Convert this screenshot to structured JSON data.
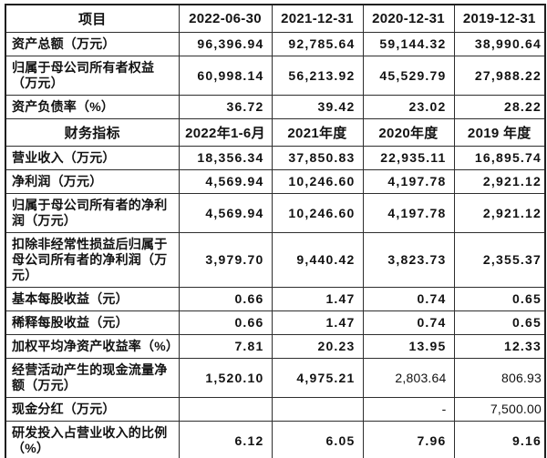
{
  "colors": {
    "background": "#ffffff",
    "text": "#121212",
    "border": "#2e2e2e",
    "outer_border": "#1e1e1e"
  },
  "table": {
    "sections": [
      {
        "header": [
          "项目",
          "2022-06-30",
          "2021-12-31",
          "2020-12-31",
          "2019-12-31"
        ],
        "rows": [
          {
            "label": "资产总额（万元）",
            "values": [
              "96,396.94",
              "92,785.64",
              "59,144.32",
              "38,990.64"
            ],
            "normal": []
          },
          {
            "label": "归属于母公司所有者权益（万元）",
            "values": [
              "60,998.14",
              "56,213.92",
              "45,529.79",
              "27,988.22"
            ],
            "normal": []
          },
          {
            "label": "资产负债率（%）",
            "values": [
              "36.72",
              "39.42",
              "23.02",
              "28.22"
            ],
            "normal": []
          }
        ]
      },
      {
        "header": [
          "财务指标",
          "2022年1-6月",
          "2021年度",
          "2020年度",
          "2019 年度"
        ],
        "rows": [
          {
            "label": "营业收入（万元）",
            "values": [
              "18,356.34",
              "37,850.83",
              "22,935.11",
              "16,895.74"
            ],
            "normal": []
          },
          {
            "label": "净利润（万元）",
            "values": [
              "4,569.94",
              "10,246.60",
              "4,197.78",
              "2,921.12"
            ],
            "normal": []
          },
          {
            "label": "归属于母公司所有者的净利润（万元）",
            "values": [
              "4,569.94",
              "10,246.60",
              "4,197.78",
              "2,921.12"
            ],
            "normal": []
          },
          {
            "label": "扣除非经常性损益后归属于母公司所有者的净利润（万元）",
            "values": [
              "3,979.70",
              "9,440.42",
              "3,823.73",
              "2,355.37"
            ],
            "normal": []
          },
          {
            "label": "基本每股收益（元）",
            "values": [
              "0.66",
              "1.47",
              "0.74",
              "0.65"
            ],
            "normal": []
          },
          {
            "label": "稀释每股收益（元）",
            "values": [
              "0.66",
              "1.47",
              "0.74",
              "0.65"
            ],
            "normal": []
          },
          {
            "label": "加权平均净资产收益率（%）",
            "values": [
              "7.81",
              "20.23",
              "13.95",
              "12.33"
            ],
            "normal": []
          },
          {
            "label": "经营活动产生的现金流量净额（万元）",
            "values": [
              "1,520.10",
              "4,975.21",
              "2,803.64",
              "806.93"
            ],
            "normal": [
              2,
              3
            ]
          },
          {
            "label": "现金分红（万元）",
            "values": [
              "",
              "",
              "-",
              "7,500.00"
            ],
            "normal": [
              2,
              3
            ]
          },
          {
            "label": "研发投入占营业收入的比例（%）",
            "values": [
              "6.12",
              "6.05",
              "7.96",
              "9.16"
            ],
            "normal": []
          }
        ]
      }
    ]
  }
}
